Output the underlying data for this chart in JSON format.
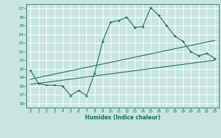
{
  "xlabel": "Humidex (Indice chaleur)",
  "bg_color": "#c8e6df",
  "grid_color": "#ffffff",
  "line_color": "#1a6b5a",
  "xlim": [
    -0.5,
    23.5
  ],
  "ylim": [
    15.5,
    27.5
  ],
  "yticks": [
    16,
    17,
    18,
    19,
    20,
    21,
    22,
    23,
    24,
    25,
    26,
    27
  ],
  "xticks": [
    0,
    1,
    2,
    3,
    4,
    5,
    6,
    7,
    8,
    9,
    10,
    11,
    12,
    13,
    14,
    15,
    16,
    17,
    18,
    19,
    20,
    21,
    22,
    23
  ],
  "main_line_x": [
    0,
    1,
    2,
    3,
    4,
    5,
    6,
    7,
    8,
    9,
    10,
    11,
    12,
    13,
    14,
    15,
    16,
    17,
    18,
    19,
    20,
    21,
    22,
    23
  ],
  "main_line_y": [
    19.8,
    18.3,
    18.1,
    18.1,
    18.0,
    16.9,
    17.5,
    16.9,
    19.5,
    23.2,
    25.4,
    25.6,
    26.0,
    24.8,
    24.9,
    27.1,
    26.2,
    25.0,
    23.8,
    23.2,
    22.0,
    21.5,
    21.8,
    21.2
  ],
  "trend1_x": [
    0,
    23
  ],
  "trend1_y": [
    18.2,
    21.0
  ],
  "trend2_x": [
    0,
    23
  ],
  "trend2_y": [
    18.8,
    23.3
  ]
}
